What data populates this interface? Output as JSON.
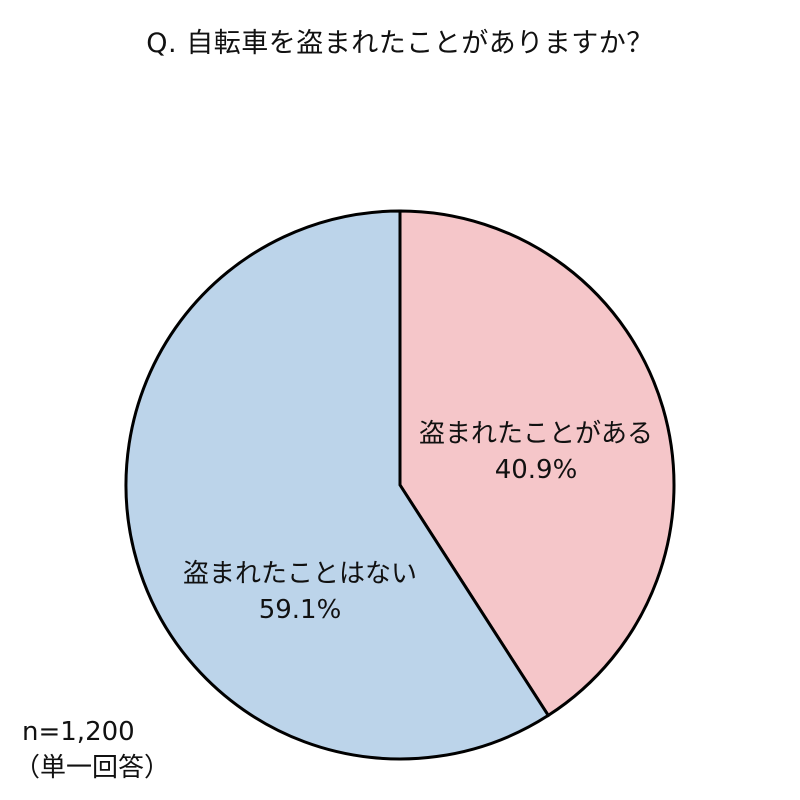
{
  "chart_data": {
    "type": "pie",
    "title": "Q. 自転車を盗まれたことがありますか？",
    "slices": [
      {
        "label": "盗まれたことがある",
        "value": 40.9,
        "value_label": "40.9%",
        "color": "#f5c6c9"
      },
      {
        "label": "盗まれたことはない",
        "value": 59.1,
        "value_label": "59.1%",
        "color": "#bcd4ea"
      }
    ],
    "start": "12 o'clock",
    "direction": "clockwise",
    "outline_color": "#000000"
  },
  "notes": {
    "sample_size": "n=1,200",
    "answer_type": "（単一回答）"
  }
}
